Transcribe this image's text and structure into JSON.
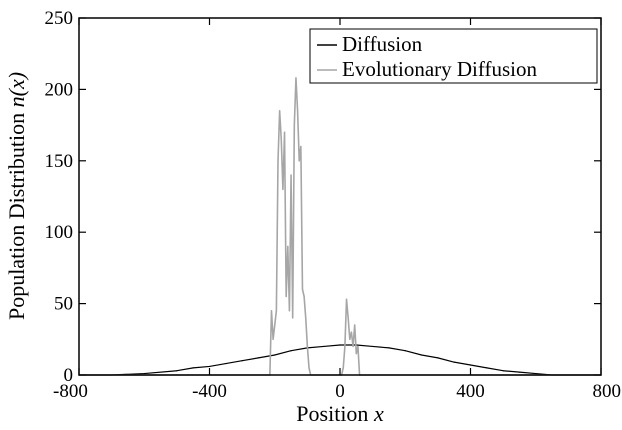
{
  "chart_data": {
    "type": "line",
    "xlabel": "Position",
    "xlabel_var": "x",
    "ylabel": "Population Distribution",
    "ylabel_var": "n(x)",
    "xlim": [
      -800,
      800
    ],
    "ylim": [
      0,
      250
    ],
    "xticks": [
      -800,
      -400,
      0,
      400,
      800
    ],
    "yticks": [
      0,
      50,
      100,
      150,
      200,
      250
    ],
    "grid": false,
    "legend_position": "top-right",
    "series": [
      {
        "name": "Diffusion",
        "color": "#000000",
        "x": [
          -800,
          -700,
          -600,
          -500,
          -450,
          -400,
          -350,
          -300,
          -250,
          -200,
          -150,
          -100,
          -50,
          0,
          50,
          100,
          150,
          200,
          250,
          300,
          350,
          400,
          450,
          500,
          550,
          600,
          650,
          700,
          800
        ],
        "y": [
          0,
          0,
          1,
          3,
          5,
          6,
          8,
          10,
          12,
          14,
          17,
          19,
          20,
          21,
          21,
          20,
          19,
          17,
          14,
          12,
          9,
          7,
          5,
          3,
          2,
          1,
          0,
          0,
          0
        ]
      },
      {
        "name": "Evolutionary Diffusion",
        "color": "#a6a6a6",
        "x": [
          -800,
          -215,
          -210,
          -205,
          -200,
          -195,
          -190,
          -185,
          -180,
          -175,
          -170,
          -165,
          -160,
          -155,
          -150,
          -145,
          -140,
          -135,
          -130,
          -125,
          -120,
          -115,
          -110,
          -105,
          -100,
          -95,
          -90,
          -85,
          -80,
          -75,
          -70,
          -65,
          -60,
          -55,
          -50,
          -40,
          -30,
          -20,
          -10,
          0,
          5,
          10,
          15,
          20,
          25,
          30,
          35,
          40,
          45,
          50,
          55,
          60,
          800
        ],
        "y": [
          0,
          0,
          45,
          25,
          35,
          45,
          150,
          185,
          165,
          130,
          170,
          55,
          90,
          45,
          140,
          40,
          175,
          208,
          185,
          150,
          160,
          60,
          55,
          40,
          20,
          5,
          0,
          0,
          0,
          0,
          0,
          0,
          0,
          0,
          0,
          0,
          0,
          0,
          0,
          0,
          0,
          5,
          20,
          53,
          40,
          25,
          30,
          20,
          35,
          15,
          20,
          0,
          0
        ]
      }
    ]
  }
}
